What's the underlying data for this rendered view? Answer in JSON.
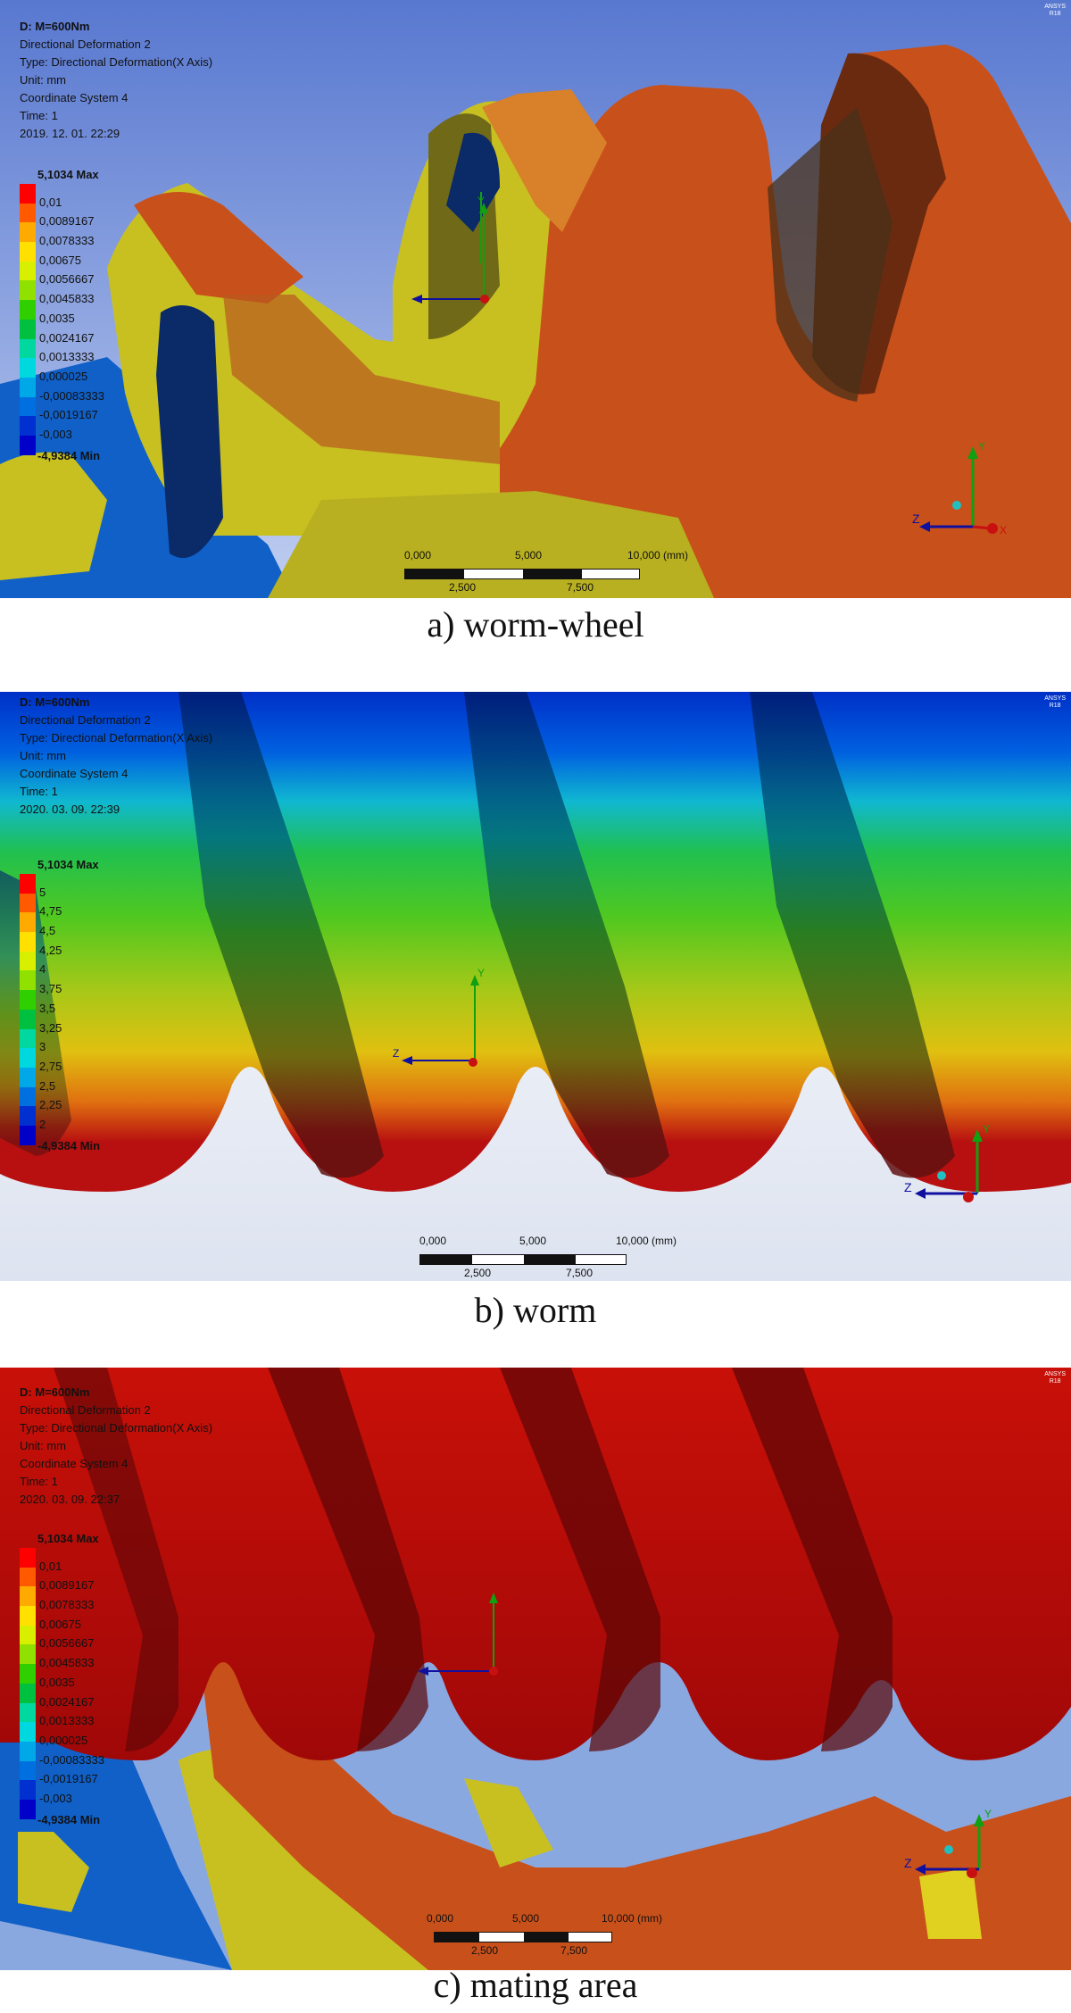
{
  "panels": [
    {
      "info": [
        "D: M=600Nm",
        "Directional Deformation 2",
        "Type: Directional Deformation(X Axis)",
        "Unit: mm",
        "Coordinate System 4",
        "Time: 1",
        "2019. 12. 01. 22:29"
      ],
      "legend_max": "5,1034 Max",
      "legend_values": [
        "0,01",
        "0,0089167",
        "0,0078333",
        "0,00675",
        "0,0056667",
        "0,0045833",
        "0,0035",
        "0,0024167",
        "0,0013333",
        "0,000025",
        "-0,00083333",
        "-0,0019167",
        "-0,003"
      ],
      "legend_min": "-4,9384 Min",
      "scale": {
        "n0": "0,000",
        "n5": "5,000",
        "n10": "10,000 (mm)",
        "n25": "2,500",
        "n75": "7,500"
      },
      "caption": "a) worm-wheel"
    },
    {
      "info": [
        "D: M=600Nm",
        "Directional Deformation 2",
        "Type: Directional Deformation(X Axis)",
        "Unit: mm",
        "Coordinate System 4",
        "Time: 1",
        "2020. 03. 09. 22:39"
      ],
      "legend_max": "5,1034 Max",
      "legend_values": [
        "5",
        "4,75",
        "4,5",
        "4,25",
        "4",
        "3,75",
        "3,5",
        "3,25",
        "3",
        "2,75",
        "2,5",
        "2,25",
        "2"
      ],
      "legend_min": "-4,9384 Min",
      "scale": {
        "n0": "0,000",
        "n5": "5,000",
        "n10": "10,000 (mm)",
        "n25": "2,500",
        "n75": "7,500"
      },
      "caption": "b) worm"
    },
    {
      "info": [
        "D: M=600Nm",
        "Directional Deformation 2",
        "Type: Directional Deformation(X Axis)",
        "Unit: mm",
        "Coordinate System 4",
        "Time: 1",
        "2020. 03. 09. 22:37"
      ],
      "legend_max": "5,1034 Max",
      "legend_values": [
        "0,01",
        "0,0089167",
        "0,0078333",
        "0,00675",
        "0,0056667",
        "0,0045833",
        "0,0035",
        "0,0024167",
        "0,0013333",
        "0,000025",
        "-0,00083333",
        "-0,0019167",
        "-0,003"
      ],
      "legend_min": "-4,9384 Min",
      "scale": {
        "n0": "0,000",
        "n5": "5,000",
        "n10": "10,000 (mm)",
        "n25": "2,500",
        "n75": "7,500"
      },
      "caption": "c) mating area"
    }
  ],
  "legend_colors": [
    "#ff0000",
    "#ff5a00",
    "#ffaa00",
    "#ffe000",
    "#d8f000",
    "#90e000",
    "#30d000",
    "#00c040",
    "#00d8a0",
    "#00d8e0",
    "#00a8e8",
    "#0070e0",
    "#0030d0",
    "#0000c8"
  ],
  "axis_labels": {
    "x": "X",
    "y": "Y",
    "z": "Z"
  }
}
